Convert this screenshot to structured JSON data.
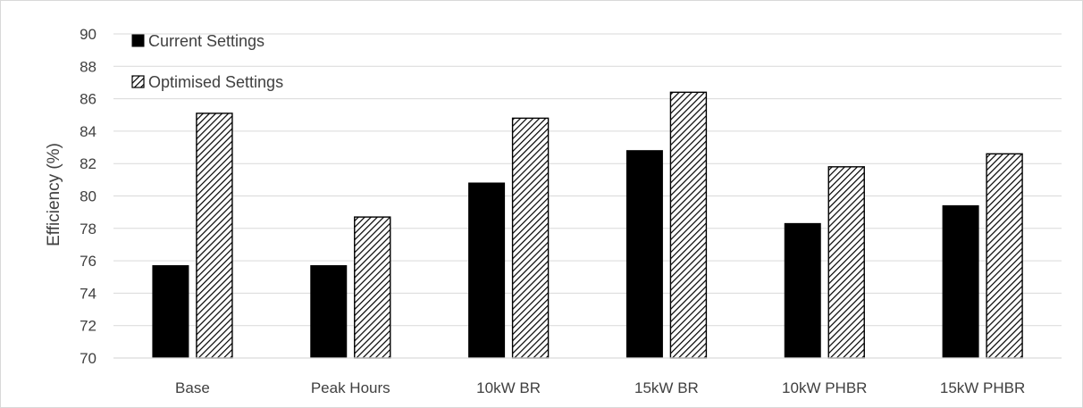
{
  "chart_data": {
    "type": "bar",
    "categories": [
      "Base",
      "Peak Hours",
      "10kW BR",
      "15kW BR",
      "10kW PHBR",
      "15kW PHBR"
    ],
    "series": [
      {
        "name": "Current Settings",
        "values": [
          75.7,
          75.7,
          80.8,
          82.8,
          78.3,
          79.4
        ],
        "color": "#000000",
        "pattern": "solid"
      },
      {
        "name": "Optimised Settings",
        "values": [
          85.1,
          78.7,
          84.8,
          86.4,
          81.8,
          82.6
        ],
        "color": "#000000",
        "pattern": "diagonal-hatch"
      }
    ],
    "xlabel": "",
    "ylabel": "Efficiency (%)",
    "ylim": [
      70,
      90
    ],
    "yticks": [
      "70",
      "72",
      "74",
      "76",
      "78",
      "80",
      "82",
      "84",
      "86",
      "88",
      "90"
    ],
    "grid": true,
    "legend_position": "top-left"
  }
}
